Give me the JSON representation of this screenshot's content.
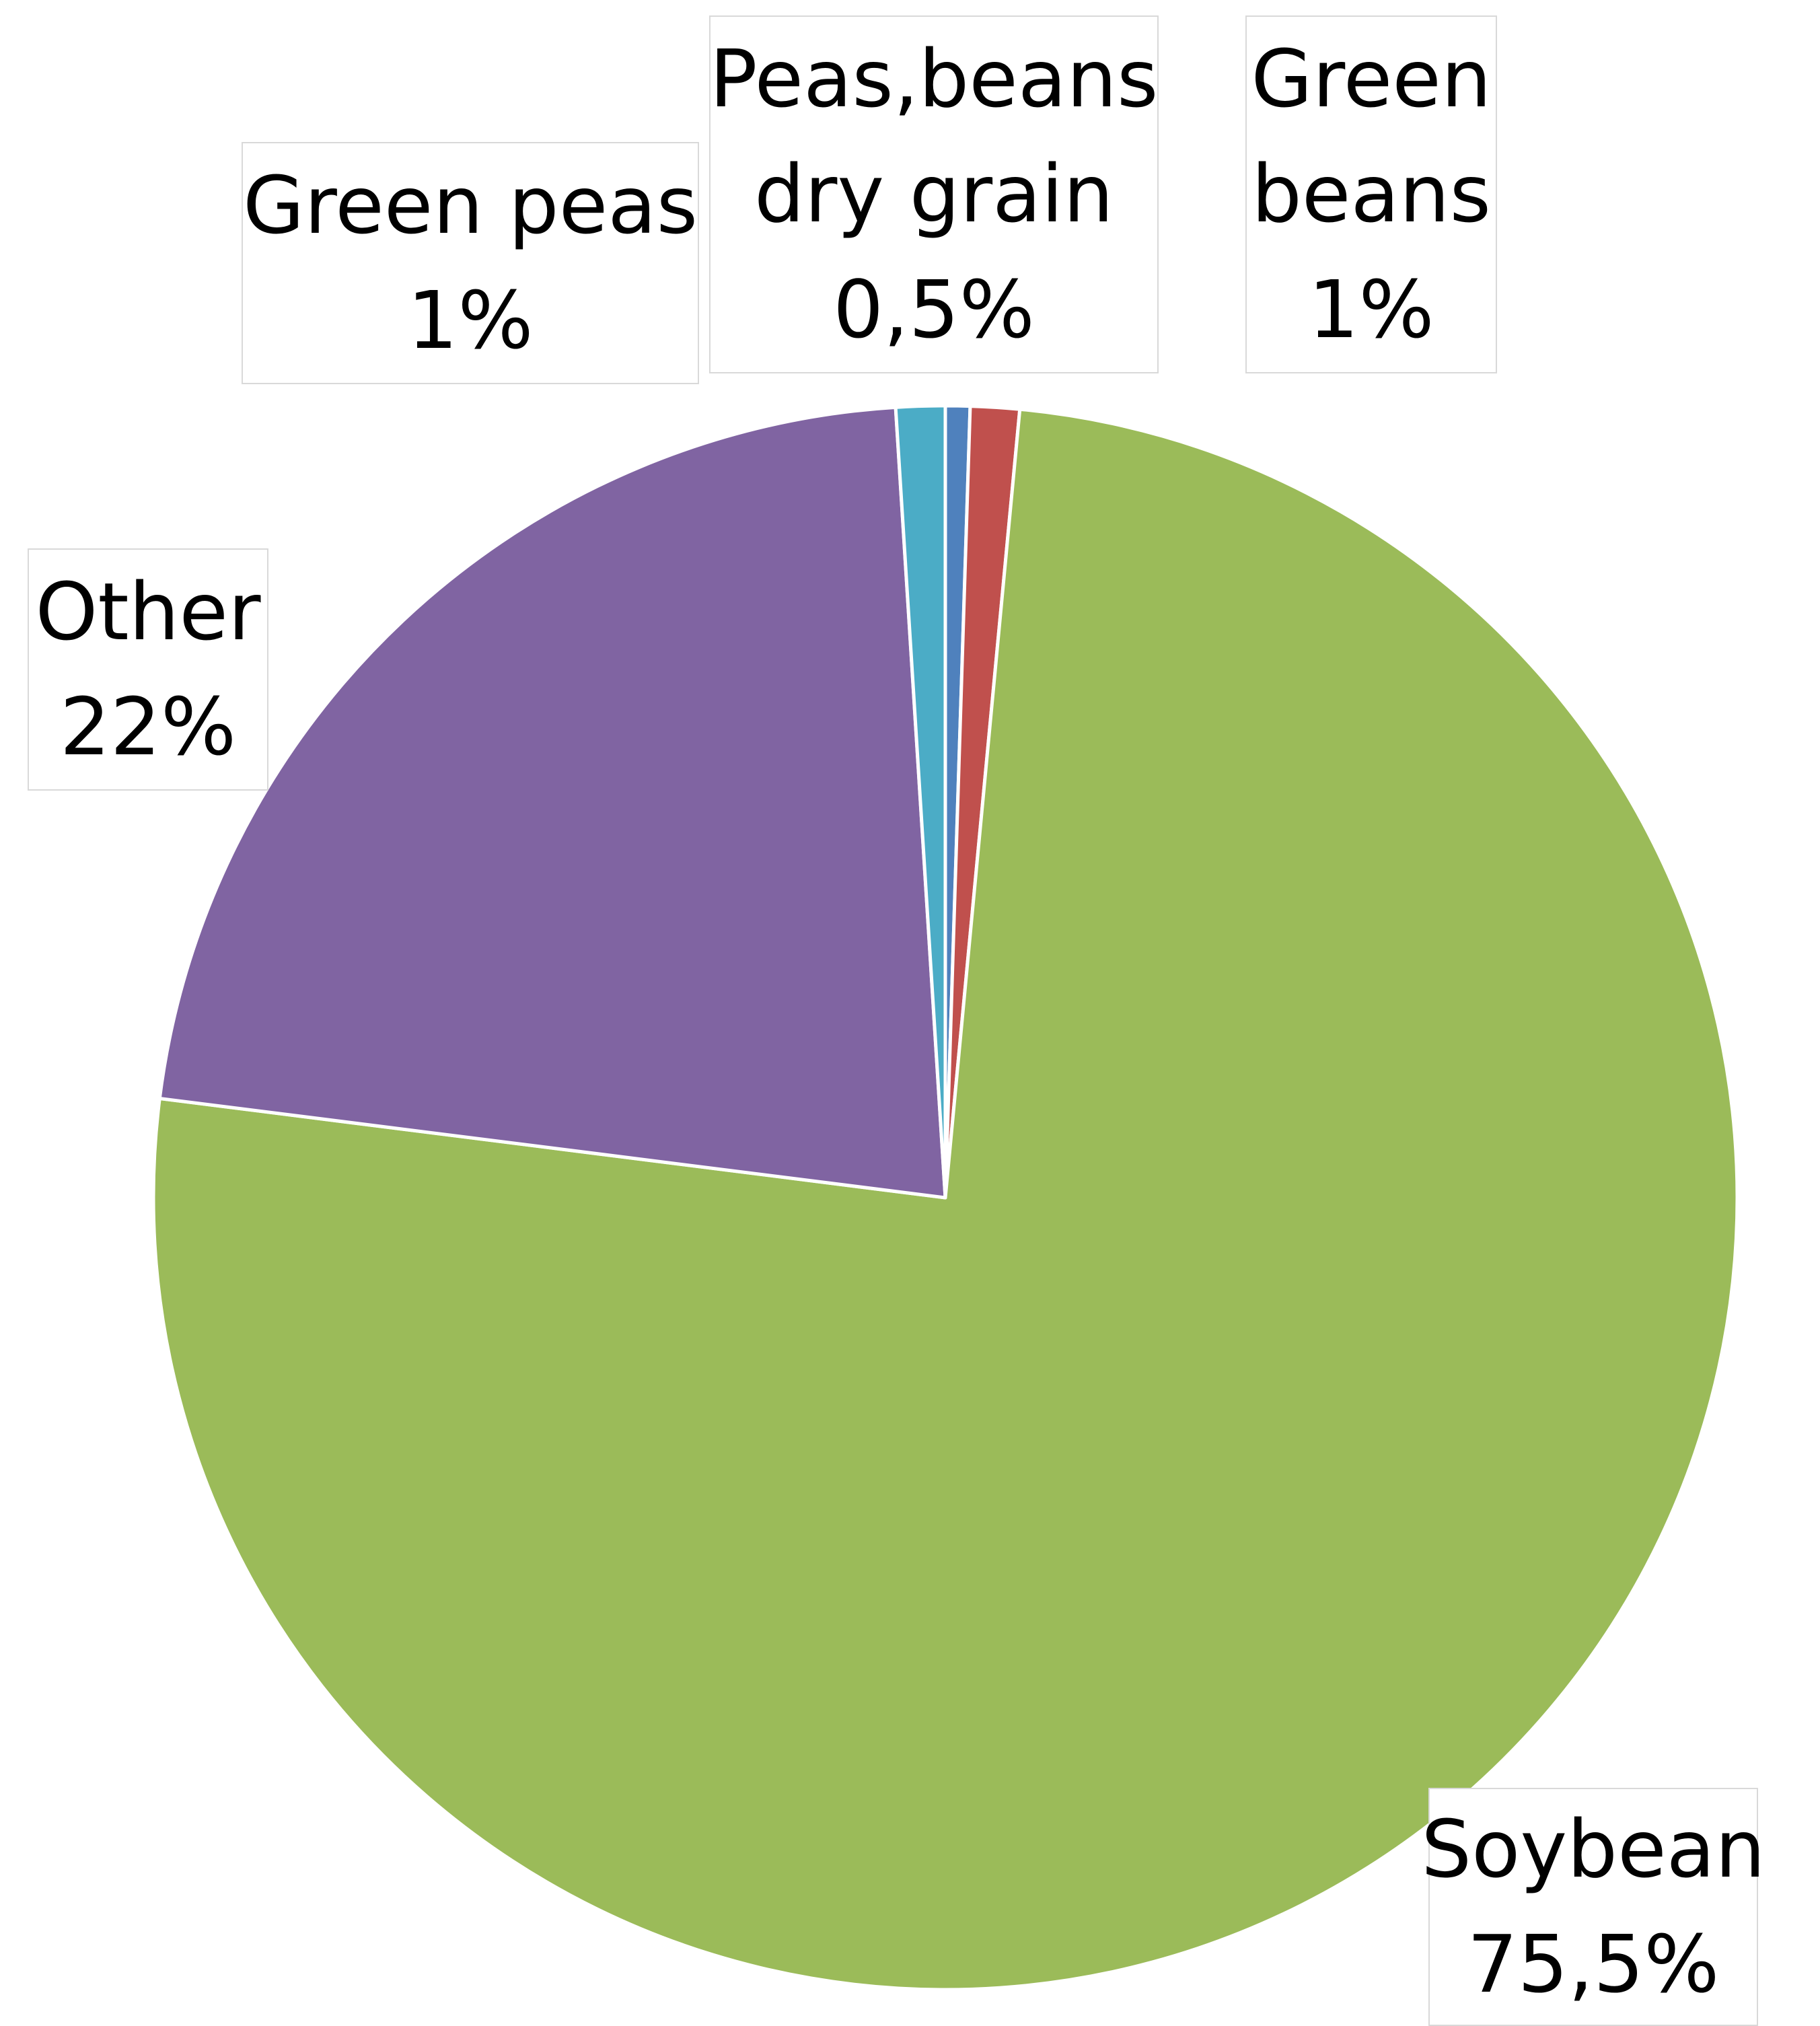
{
  "chart_data": {
    "type": "pie",
    "categories": [
      "Peas,beans dry grain",
      "Green beans",
      "Soybean",
      "Other",
      "Green peas"
    ],
    "values": [
      0.5,
      1,
      75.5,
      22,
      1
    ],
    "colors": [
      "#4F81BD",
      "#C0504D",
      "#9BBB59",
      "#8064A2",
      "#4BACC6"
    ],
    "start_angle_deg": 0,
    "direction": "clockwise",
    "legend": "none",
    "data_labels": [
      {
        "lines": [
          "Peas,beans",
          "dry grain",
          "0,5%"
        ]
      },
      {
        "lines": [
          "Green",
          "beans",
          "1%"
        ]
      },
      {
        "lines": [
          "Soybean",
          "75,5%"
        ]
      },
      {
        "lines": [
          "Other",
          "22%"
        ]
      },
      {
        "lines": [
          "Green peas",
          "1%"
        ]
      }
    ]
  }
}
